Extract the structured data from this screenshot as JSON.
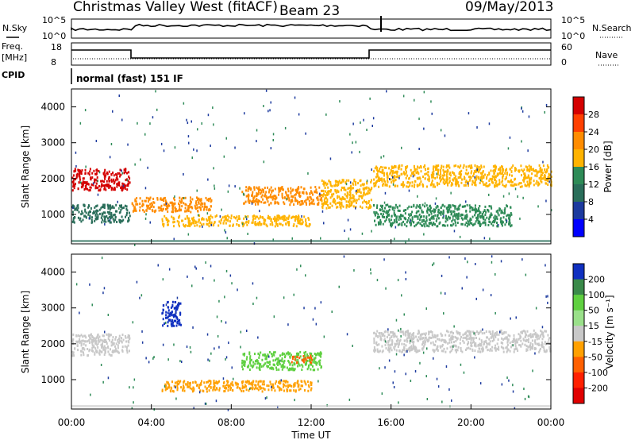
{
  "header": {
    "radar": "Christmas Valley West (fitACF)",
    "beam": "Beam 23",
    "date": "09/May/2013"
  },
  "top_panels": {
    "nsky_label": "N.Sky",
    "nsearch_label": "N.Search",
    "noise_ticks": [
      "10^5",
      "10^0"
    ],
    "freq_label": "Freq.",
    "freq_unit": "[MHz]",
    "freq_ticks": [
      "18",
      "8"
    ],
    "nave_label": "Nave",
    "nave_ticks": [
      "60",
      "0"
    ],
    "cpid_label": "CPID",
    "cpid_value": "normal (fast) 151 IF"
  },
  "chart_data": [
    {
      "type": "heatmap",
      "title": "",
      "ylabel": "Slant Range [km]",
      "ylim": [
        180,
        4500
      ],
      "y_ticks": [
        "1000",
        "2000",
        "3000",
        "4000"
      ],
      "x_ticks": [
        "00:00",
        "04:00",
        "08:00",
        "12:00",
        "16:00",
        "20:00",
        "00:00"
      ],
      "xlim_hours": [
        0,
        24
      ],
      "colorbar": {
        "label": "Power [dB]",
        "ticks": [
          "28",
          "24",
          "20",
          "16",
          "12",
          "8",
          "4"
        ],
        "colors": [
          "#d40000",
          "#ff4000",
          "#ff8c00",
          "#ffb300",
          "#2e8b57",
          "#2a6e5a",
          "#1c3a9e",
          "#0000ff"
        ]
      },
      "echo_bands": [
        {
          "t": [
            0.0,
            2.9
          ],
          "range_km": [
            1700,
            2300
          ],
          "level_db": 24
        },
        {
          "t": [
            0.0,
            2.9
          ],
          "range_km": [
            800,
            1300
          ],
          "level_db": 10
        },
        {
          "t": [
            3.0,
            7.0
          ],
          "range_km": [
            1100,
            1500
          ],
          "level_db": 22
        },
        {
          "t": [
            4.5,
            12.0
          ],
          "range_km": [
            700,
            1000
          ],
          "level_db": 18
        },
        {
          "t": [
            8.5,
            12.5
          ],
          "range_km": [
            1300,
            1800
          ],
          "level_db": 20
        },
        {
          "t": [
            12.5,
            15.0
          ],
          "range_km": [
            1200,
            2000
          ],
          "level_db": 16
        },
        {
          "t": [
            15.1,
            24.0
          ],
          "range_km": [
            1800,
            2400
          ],
          "level_db": 18
        },
        {
          "t": [
            15.1,
            22.0
          ],
          "range_km": [
            700,
            1300
          ],
          "level_db": 14
        }
      ]
    },
    {
      "type": "heatmap",
      "title": "",
      "ylabel": "Slant Range [km]",
      "ylim": [
        180,
        4500
      ],
      "y_ticks": [
        "1000",
        "2000",
        "3000",
        "4000"
      ],
      "x_ticks": [
        "00:00",
        "04:00",
        "08:00",
        "12:00",
        "16:00",
        "20:00",
        "00:00"
      ],
      "xlabel": "Time UT",
      "xlim_hours": [
        0,
        24
      ],
      "colorbar": {
        "label": "Velocity [m s⁻¹]",
        "ticks": [
          "200",
          "100",
          "50",
          "15",
          "-15",
          "-50",
          "-100",
          "-200"
        ],
        "colors": [
          "#1030c0",
          "#3a8a4a",
          "#5fd040",
          "#9ae08a",
          "#c8c8c8",
          "#ffa000",
          "#ff6000",
          "#ff2000",
          "#e00000"
        ]
      },
      "echo_bands": [
        {
          "t": [
            0.0,
            2.9
          ],
          "range_km": [
            1700,
            2300
          ],
          "velocity": 0
        },
        {
          "t": [
            4.5,
            5.5
          ],
          "range_km": [
            2500,
            3200
          ],
          "velocity": 200
        },
        {
          "t": [
            4.5,
            12.0
          ],
          "range_km": [
            700,
            1000
          ],
          "velocity": -50
        },
        {
          "t": [
            8.5,
            12.5
          ],
          "range_km": [
            1300,
            1800
          ],
          "velocity": 50
        },
        {
          "t": [
            11.0,
            12.0
          ],
          "range_km": [
            1500,
            1700
          ],
          "velocity": -100
        },
        {
          "t": [
            15.1,
            24.0
          ],
          "range_km": [
            1800,
            2400
          ],
          "velocity": 0
        }
      ]
    }
  ]
}
